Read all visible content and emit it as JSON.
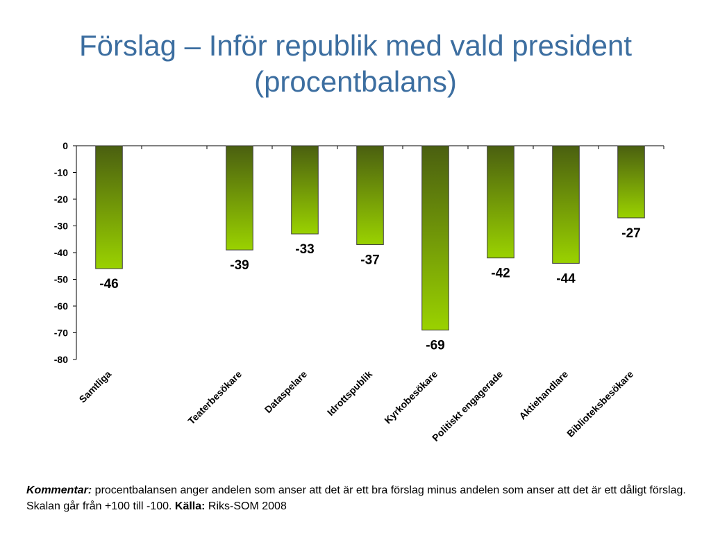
{
  "slide": {
    "title_line1": "Förslag – Inför republik med vald president",
    "title_line2": "(procentbalans)"
  },
  "footnote": {
    "comment_label": "Kommentar:",
    "comment_text": " procentbalansen anger andelen som anser att det är ett bra förslag minus andelen som anser att det är ett dåligt förslag. Skalan går från +100 till -100. ",
    "source_label": "Källa:",
    "source_text": " Riks-SOM 2008"
  },
  "colors": {
    "title": "#3c6ea0",
    "bar_top": "#4a5f10",
    "bar_bottom": "#9ad200",
    "bar_outline": "#3b3b3b",
    "axis": "#000000"
  },
  "chart_data": {
    "type": "bar",
    "title": "",
    "xlabel": "",
    "ylabel": "",
    "ylim": [
      -80,
      0
    ],
    "yticks": [
      0,
      -10,
      -20,
      -30,
      -40,
      -50,
      -60,
      -70,
      -80
    ],
    "grid": false,
    "legend": "none",
    "categories": [
      "Samtliga",
      "",
      "Teaterbesökare",
      "Dataspelare",
      "Idrottspublik",
      "Kyrkobesökare",
      "Politiskt engagerade",
      "Aktiehandlare",
      "Biblioteksbesökare"
    ],
    "values": [
      -46,
      null,
      -39,
      -33,
      -37,
      -69,
      -42,
      -44,
      -27
    ],
    "data_labels": [
      "-46",
      "",
      "-39",
      "-33",
      "-37",
      "-69",
      "-42",
      "-44",
      "-27"
    ]
  }
}
